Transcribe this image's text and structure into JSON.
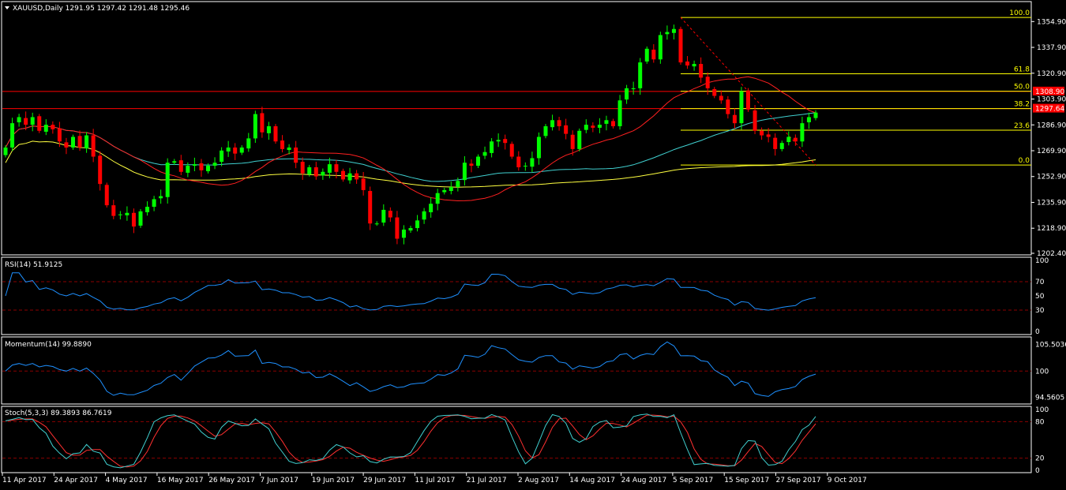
{
  "colors": {
    "background": "#000000",
    "bull": "#00ff00",
    "bear": "#ff0000",
    "ma_fast": "#ff2020",
    "ma_mid": "#40d0d0",
    "ma_slow": "#ffff40",
    "fib": "#ffff00",
    "hline": "#ff0000",
    "indicator": "#1e90ff",
    "stoch_signal": "#ff3030",
    "stoch_main": "#40d0d0",
    "level": "#8b0000"
  },
  "chart_data": [
    {
      "type": "candlestick",
      "header": "XAUUSD,Daily  1291.95 1297.42 1291.48 1295.46",
      "ylim": [
        1202.4,
        1367
      ],
      "y_ticks": [
        "1354.90",
        "1337.90",
        "1320.90",
        "1303.90",
        "1286.90",
        "1269.90",
        "1252.90",
        "1235.90",
        "1218.90",
        "1202.40"
      ],
      "x_labels": [
        "11 Apr 2017",
        "24 Apr 2017",
        "4 May 2017",
        "16 May 2017",
        "26 May 2017",
        "7 Jun 2017",
        "19 Jun 2017",
        "29 Jun 2017",
        "11 Jul 2017",
        "21 Jul 2017",
        "2 Aug 2017",
        "14 Aug 2017",
        "24 Aug 2017",
        "5 Sep 2017",
        "15 Sep 2017",
        "27 Sep 2017",
        "9 Oct 2017"
      ],
      "closes": [
        1272,
        1288,
        1292,
        1287,
        1292,
        1283,
        1287,
        1284,
        1276,
        1272,
        1279,
        1272,
        1280,
        1266,
        1248,
        1234,
        1227,
        1228,
        1229,
        1220,
        1230,
        1233,
        1238,
        1240,
        1262,
        1263,
        1256,
        1260,
        1261,
        1257,
        1260,
        1262,
        1270,
        1272,
        1268,
        1272,
        1278,
        1294,
        1282,
        1286,
        1276,
        1271,
        1272,
        1262,
        1255,
        1259,
        1253,
        1256,
        1261,
        1256,
        1251,
        1255,
        1251,
        1244,
        1222,
        1222,
        1231,
        1226,
        1212,
        1218,
        1219,
        1224,
        1230,
        1235,
        1242,
        1244,
        1246,
        1250,
        1262,
        1260,
        1266,
        1269,
        1276,
        1277,
        1275,
        1266,
        1259,
        1260,
        1265,
        1279,
        1286,
        1290,
        1286,
        1281,
        1271,
        1283,
        1287,
        1285,
        1287,
        1290,
        1286,
        1303,
        1311,
        1311,
        1328,
        1337,
        1330,
        1346,
        1348,
        1350,
        1328,
        1326,
        1327,
        1318,
        1311,
        1306,
        1303,
        1294,
        1288,
        1309,
        1297,
        1283,
        1280,
        1279,
        1271,
        1275,
        1279,
        1276,
        1288,
        1292,
        1295
      ],
      "highs_labels": [
        "1308.90",
        "1297.64"
      ],
      "h_lines": [
        1308.9,
        1297.64
      ],
      "fib": {
        "levels": [
          "100.0",
          "61.8",
          "50.0",
          "38.2",
          "23.6",
          "0.0"
        ],
        "high": 1357.6,
        "low": 1260.5
      },
      "ma_fast_period": 20,
      "ma_mid_period": 50,
      "ma_slow_period": 100
    },
    {
      "type": "line",
      "header": "RSI(14) 51.9125",
      "ylim": [
        0,
        100
      ],
      "y_ticks": [
        "100",
        "70",
        "50",
        "30",
        "0"
      ],
      "levels": [
        70,
        30
      ]
    },
    {
      "type": "line",
      "header": "Momentum(14) 99.8890",
      "ylim": [
        93.5,
        106.6
      ],
      "y_ticks": [
        "105.5036",
        "100",
        "94.5605"
      ],
      "levels": [
        100
      ]
    },
    {
      "type": "line",
      "header": "Stoch(5,3,3) 89.3893 86.7619",
      "ylim": [
        0,
        100
      ],
      "y_ticks": [
        "100",
        "80",
        "20",
        "0"
      ],
      "levels": [
        80,
        20
      ]
    }
  ]
}
